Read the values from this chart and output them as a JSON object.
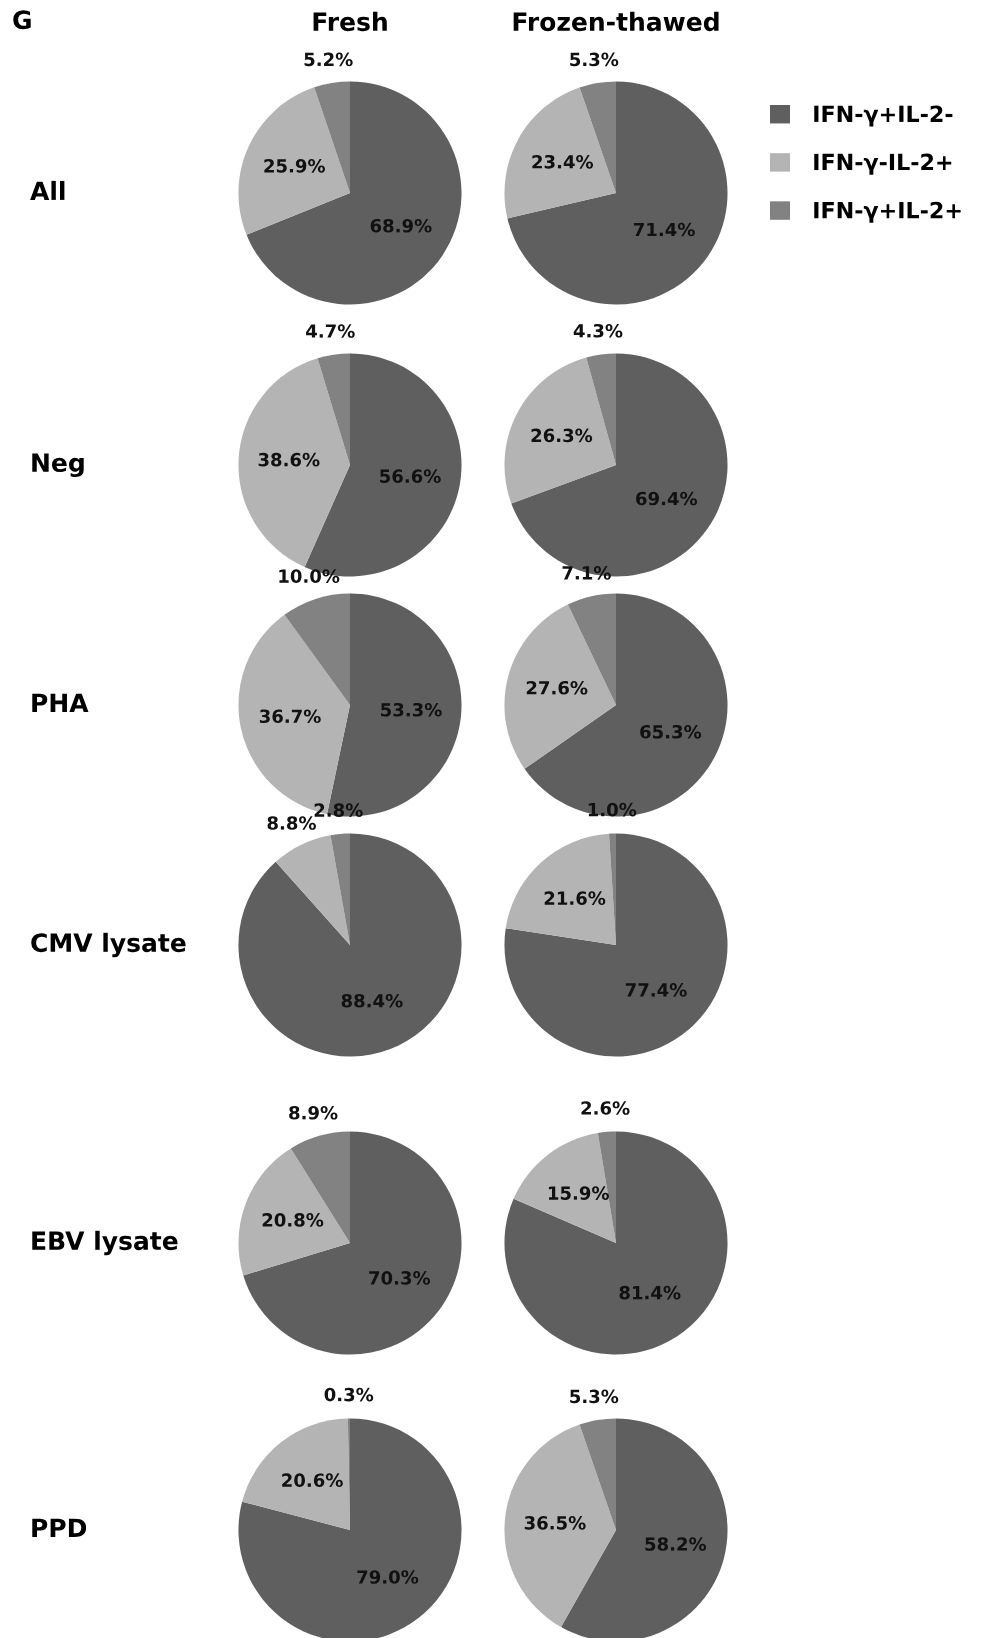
{
  "chart_data": [
    {
      "type": "pie",
      "title": "Fresh",
      "ylabel": "All",
      "annotations": [
        "G"
      ],
      "legend": "right",
      "categories": [
        "IFN-γ+IL-2-",
        "IFN-γ-IL-2+",
        "IFN-γ+IL-2+"
      ],
      "values": [
        68.9,
        25.9,
        5.2
      ],
      "value_labels": [
        "68.9%",
        "25.9%",
        "5.2%"
      ],
      "colors": [
        "#5f5f5f",
        "#b4b4b4",
        "#828282"
      ]
    },
    {
      "type": "pie",
      "title": "Frozen-thawed",
      "categories": [
        null,
        null,
        null
      ],
      "values": [
        71.4,
        23.4,
        5.3
      ],
      "value_labels": [
        "71.4%",
        "23.4%",
        "5.3%"
      ],
      "colors": [
        "#5f5f5f",
        "#b4b4b4",
        "#828282"
      ]
    },
    {
      "type": "pie",
      "ylabel": "Neg",
      "categories": [
        null,
        null,
        null
      ],
      "values": [
        56.6,
        38.6,
        4.7
      ],
      "value_labels": [
        "56.6%",
        "38.6%",
        "4.7%"
      ],
      "colors": [
        "#5f5f5f",
        "#b4b4b4",
        "#828282"
      ]
    },
    {
      "type": "pie",
      "categories": [
        null,
        null,
        null
      ],
      "values": [
        69.4,
        26.3,
        4.3
      ],
      "value_labels": [
        "69.4%",
        "26.3%",
        "4.3%"
      ],
      "colors": [
        "#5f5f5f",
        "#b4b4b4",
        "#828282"
      ]
    },
    {
      "type": "pie",
      "ylabel": "PHA",
      "categories": [
        null,
        null,
        null
      ],
      "values": [
        53.3,
        36.7,
        10.0
      ],
      "value_labels": [
        "53.3%",
        "36.7%",
        "10.0%"
      ],
      "colors": [
        "#5f5f5f",
        "#b4b4b4",
        "#828282"
      ]
    },
    {
      "type": "pie",
      "categories": [
        null,
        null,
        null
      ],
      "values": [
        65.3,
        27.6,
        7.1
      ],
      "value_labels": [
        "65.3%",
        "27.6%",
        "7.1%"
      ],
      "colors": [
        "#5f5f5f",
        "#b4b4b4",
        "#828282"
      ]
    },
    {
      "type": "pie",
      "ylabel": "CMV lysate",
      "categories": [
        null,
        null,
        null
      ],
      "values": [
        88.4,
        8.8,
        2.8
      ],
      "value_labels": [
        "88.4%",
        "8.8%",
        "2.8%"
      ],
      "colors": [
        "#5f5f5f",
        "#b4b4b4",
        "#828282"
      ]
    },
    {
      "type": "pie",
      "categories": [
        null,
        null,
        null
      ],
      "values": [
        77.4,
        21.6,
        1.0
      ],
      "value_labels": [
        "77.4%",
        "21.6%",
        "1.0%"
      ],
      "colors": [
        "#5f5f5f",
        "#b4b4b4",
        "#828282"
      ]
    },
    {
      "type": "pie",
      "ylabel": "EBV lysate",
      "categories": [
        null,
        null,
        null
      ],
      "values": [
        70.3,
        20.8,
        8.9
      ],
      "value_labels": [
        "70.3%",
        "20.8%",
        "8.9%"
      ],
      "colors": [
        "#5f5f5f",
        "#b4b4b4",
        "#828282"
      ]
    },
    {
      "type": "pie",
      "categories": [
        null,
        null,
        null
      ],
      "values": [
        81.4,
        15.9,
        2.6
      ],
      "value_labels": [
        "81.4%",
        "15.9%",
        "2.6%"
      ],
      "colors": [
        "#5f5f5f",
        "#b4b4b4",
        "#828282"
      ]
    },
    {
      "type": "pie",
      "ylabel": "PPD",
      "categories": [
        null,
        null,
        null
      ],
      "values": [
        79.0,
        20.6,
        0.3
      ],
      "value_labels": [
        "79.0%",
        "20.6%",
        "0.3%"
      ],
      "colors": [
        "#5f5f5f",
        "#b4b4b4",
        "#828282"
      ]
    },
    {
      "type": "pie",
      "categories": [
        null,
        null,
        null
      ],
      "values": [
        58.2,
        36.5,
        5.3
      ],
      "value_labels": [
        "58.2%",
        "36.5%",
        "5.3%"
      ],
      "colors": [
        "#5f5f5f",
        "#b4b4b4",
        "#828282"
      ]
    }
  ]
}
